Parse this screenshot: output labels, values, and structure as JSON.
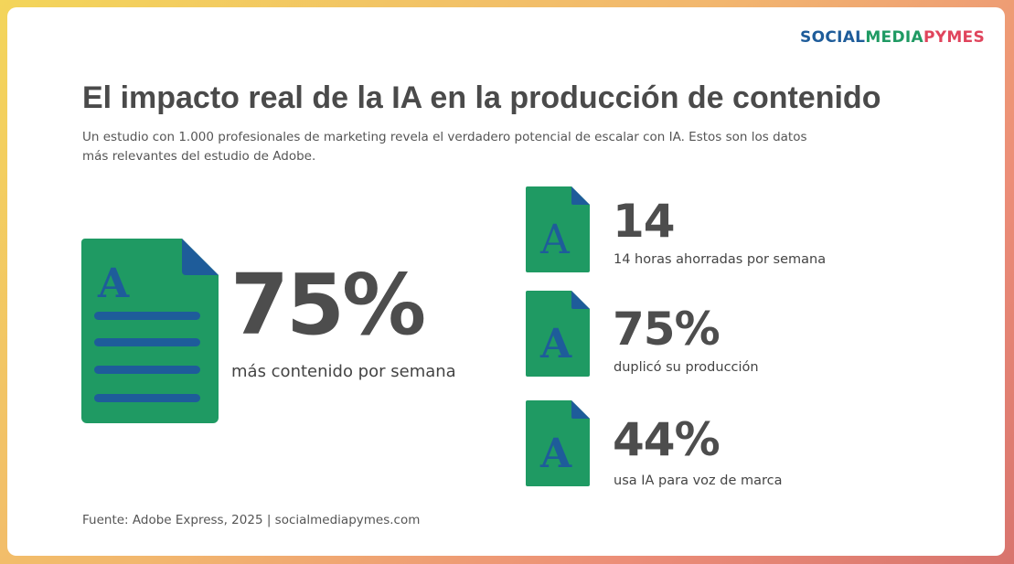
{
  "brand": {
    "part1": "SOCIAL",
    "part2": "MEDIA",
    "part3": "PYMES",
    "colors": {
      "social": "#1e5c9a",
      "media": "#1f9a63",
      "pymes": "#e0445c"
    }
  },
  "title": "El impacto real de la IA en la producción de contenido",
  "subtitle": "Un estudio con 1.000 profesionales de marketing revela el verdadero potencial de escalar con IA. Estos son los datos más relevantes del estudio de Adobe.",
  "main_stat": {
    "value": "75%",
    "label": "más contenido por semana",
    "icon": "document-icon"
  },
  "stats": [
    {
      "value": "14",
      "label": "14 horas ahorradas por semana",
      "icon": "document-icon"
    },
    {
      "value": "75%",
      "label": "duplicó su producción",
      "icon": "document-icon"
    },
    {
      "value": "44%",
      "label": "usa IA para voz de marca",
      "icon": "document-icon"
    }
  ],
  "icon_letter": "A",
  "source": "Fuente: Adobe Express, 2025 | socialmediapymes.com",
  "colors": {
    "doc_green": "#1f9a63",
    "doc_fold": "#1e5c9a",
    "doc_lines": "#1e5c9a",
    "text_dark": "#4a4a4a"
  }
}
